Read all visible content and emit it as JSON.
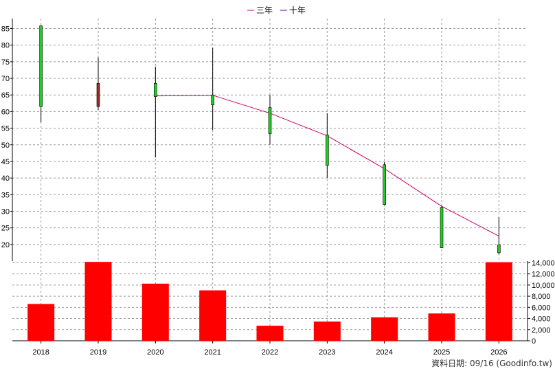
{
  "chart_data": {
    "type": "candlestick+bar",
    "legend": [
      {
        "label": "三年",
        "color": "#cc0066"
      },
      {
        "label": "十年",
        "color": "#660099"
      }
    ],
    "categories": [
      "2018",
      "2019",
      "2020",
      "2021",
      "2022",
      "2023",
      "2024",
      "2025",
      "2026"
    ],
    "price_axis": {
      "ticks": [
        20,
        25,
        30,
        35,
        40,
        45,
        50,
        55,
        60,
        65,
        70,
        75,
        80,
        85
      ],
      "range": [
        15,
        88
      ]
    },
    "volume_axis": {
      "ticks": [
        0,
        2000,
        4000,
        6000,
        8000,
        10000,
        12000,
        14000
      ],
      "tick_labels": [
        "0",
        "2,000",
        "4,000",
        "6,000",
        "8,000",
        "10,000",
        "12,000",
        "14,000"
      ],
      "range": [
        0,
        14300
      ]
    },
    "candles": [
      {
        "year": "2018",
        "open": 61.5,
        "close": 85.8,
        "high": 86.0,
        "low": 56.8,
        "color": "#22cc22"
      },
      {
        "year": "2019",
        "open": 68.5,
        "close": 61.5,
        "high": 76.3,
        "low": 60.5,
        "color": "#aa2222"
      },
      {
        "year": "2020",
        "open": 64.5,
        "close": 68.5,
        "high": 73.5,
        "low": 46.2,
        "color": "#22cc22"
      },
      {
        "year": "2021",
        "open": 62.0,
        "close": 65.0,
        "high": 79.2,
        "low": 54.5,
        "color": "#22cc22"
      },
      {
        "year": "2022",
        "open": 53.3,
        "close": 61.2,
        "high": 65.0,
        "low": 50.0,
        "color": "#22cc22"
      },
      {
        "year": "2023",
        "open": 43.8,
        "close": 53.0,
        "high": 59.5,
        "low": 40.0,
        "color": "#22cc22"
      },
      {
        "year": "2024",
        "open": 32.0,
        "close": 44.0,
        "high": 44.8,
        "low": 31.8,
        "color": "#22cc22"
      },
      {
        "year": "2025",
        "open": 19.0,
        "close": 31.2,
        "high": 31.5,
        "low": 19.0,
        "color": "#22cc22"
      },
      {
        "year": "2026",
        "open": 17.5,
        "close": 19.8,
        "high": 28.2,
        "low": 17.0,
        "color": "#22cc22"
      }
    ],
    "series": [
      {
        "name": "三年",
        "color": "#cc0066",
        "x": [
          "2020",
          "2021",
          "2022",
          "2023",
          "2024",
          "2025",
          "2026"
        ],
        "values": [
          64.7,
          64.9,
          59.5,
          52.7,
          42.8,
          31.5,
          22.5
        ]
      }
    ],
    "volume": {
      "values": [
        6600,
        14150,
        10250,
        9050,
        2700,
        3450,
        4200,
        4900,
        14100
      ],
      "color": "#ff0000"
    },
    "grid": true
  },
  "footer": {
    "date_text": "資料日期: 09/16  (Goodinfo.tw)"
  }
}
